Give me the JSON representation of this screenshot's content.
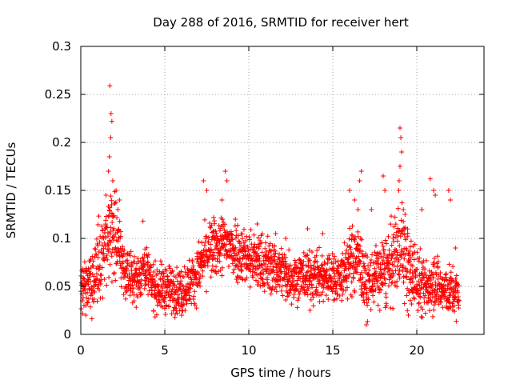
{
  "chart_data": {
    "type": "scatter",
    "title": "Day 288 of 2016, SRMTID for receiver hert",
    "xlabel": "GPS time / hours",
    "ylabel": "SRMTID / TECUs",
    "xlim": [
      0,
      24
    ],
    "ylim": [
      0,
      0.3
    ],
    "grid": true,
    "marker": "+",
    "xticks": [
      {
        "value": 0,
        "label": "0"
      },
      {
        "value": 5,
        "label": "5"
      },
      {
        "value": 10,
        "label": "10"
      },
      {
        "value": 15,
        "label": "15"
      },
      {
        "value": 20,
        "label": "20"
      }
    ],
    "yticks": [
      {
        "value": 0,
        "label": "0"
      },
      {
        "value": 0.05,
        "label": "0.05"
      },
      {
        "value": 0.1,
        "label": "0.1"
      },
      {
        "value": 0.15,
        "label": "0.15"
      },
      {
        "value": 0.2,
        "label": "0.2"
      },
      {
        "value": 0.25,
        "label": "0.25"
      },
      {
        "value": 0.3,
        "label": "0.3"
      }
    ],
    "series": [
      {
        "name": "SRMTID",
        "color": "#ff0000",
        "x_start": 0,
        "x_end": 22.5,
        "x_step": 0.02,
        "envelope": [
          [
            0,
            0.05,
            0.013
          ],
          [
            0.5,
            0.048,
            0.015
          ],
          [
            1.0,
            0.07,
            0.02
          ],
          [
            1.5,
            0.09,
            0.02
          ],
          [
            1.8,
            0.11,
            0.025
          ],
          [
            2.2,
            0.095,
            0.02
          ],
          [
            2.6,
            0.065,
            0.013
          ],
          [
            3.0,
            0.058,
            0.012
          ],
          [
            3.5,
            0.06,
            0.012
          ],
          [
            3.8,
            0.075,
            0.012
          ],
          [
            4.2,
            0.05,
            0.012
          ],
          [
            5.0,
            0.048,
            0.012
          ],
          [
            6.0,
            0.045,
            0.012
          ],
          [
            6.8,
            0.06,
            0.012
          ],
          [
            7.5,
            0.085,
            0.015
          ],
          [
            8.0,
            0.09,
            0.015
          ],
          [
            8.5,
            0.095,
            0.015
          ],
          [
            9.5,
            0.085,
            0.015
          ],
          [
            10.5,
            0.075,
            0.015
          ],
          [
            11.5,
            0.07,
            0.014
          ],
          [
            12.5,
            0.06,
            0.013
          ],
          [
            13.5,
            0.06,
            0.013
          ],
          [
            14.5,
            0.06,
            0.013
          ],
          [
            15.5,
            0.06,
            0.013
          ],
          [
            16.0,
            0.075,
            0.016
          ],
          [
            16.5,
            0.08,
            0.018
          ],
          [
            17.0,
            0.05,
            0.015
          ],
          [
            17.5,
            0.06,
            0.015
          ],
          [
            18.0,
            0.065,
            0.018
          ],
          [
            18.5,
            0.07,
            0.02
          ],
          [
            19.0,
            0.1,
            0.025
          ],
          [
            19.5,
            0.065,
            0.02
          ],
          [
            20.0,
            0.06,
            0.018
          ],
          [
            20.5,
            0.045,
            0.014
          ],
          [
            21.0,
            0.06,
            0.016
          ],
          [
            21.5,
            0.045,
            0.012
          ],
          [
            22.0,
            0.045,
            0.012
          ],
          [
            22.5,
            0.04,
            0.012
          ]
        ],
        "peaks": [
          [
            1.73,
            0.259
          ],
          [
            1.8,
            0.23
          ],
          [
            1.85,
            0.222
          ],
          [
            1.78,
            0.205
          ],
          [
            1.7,
            0.185
          ],
          [
            1.65,
            0.17
          ],
          [
            1.9,
            0.16
          ],
          [
            2.1,
            0.15
          ],
          [
            1.5,
            0.145
          ],
          [
            2.3,
            0.14
          ],
          [
            3.7,
            0.118
          ],
          [
            7.3,
            0.16
          ],
          [
            7.5,
            0.15
          ],
          [
            8.6,
            0.17
          ],
          [
            8.7,
            0.16
          ],
          [
            8.4,
            0.14
          ],
          [
            9.2,
            0.12
          ],
          [
            16.0,
            0.15
          ],
          [
            16.3,
            0.14
          ],
          [
            16.5,
            0.13
          ],
          [
            16.7,
            0.17
          ],
          [
            16.6,
            0.16
          ],
          [
            18.0,
            0.165
          ],
          [
            18.1,
            0.15
          ],
          [
            17.3,
            0.13
          ],
          [
            19.0,
            0.215
          ],
          [
            19.05,
            0.205
          ],
          [
            19.1,
            0.19
          ],
          [
            19.0,
            0.175
          ],
          [
            18.95,
            0.16
          ],
          [
            19.2,
            0.13
          ],
          [
            19.3,
            0.125
          ],
          [
            20.8,
            0.162
          ],
          [
            21.0,
            0.15
          ],
          [
            21.1,
            0.145
          ],
          [
            21.9,
            0.15
          ],
          [
            22.0,
            0.14
          ],
          [
            20.3,
            0.13
          ],
          [
            10.5,
            0.115
          ],
          [
            13.5,
            0.11
          ],
          [
            14.4,
            0.105
          ],
          [
            11.6,
            0.105
          ],
          [
            12.2,
            0.1
          ],
          [
            22.3,
            0.09
          ],
          [
            17.0,
            0.01
          ],
          [
            6.0,
            0.02
          ],
          [
            0.3,
            0.02
          ],
          [
            19.5,
            0.02
          ]
        ]
      }
    ]
  }
}
